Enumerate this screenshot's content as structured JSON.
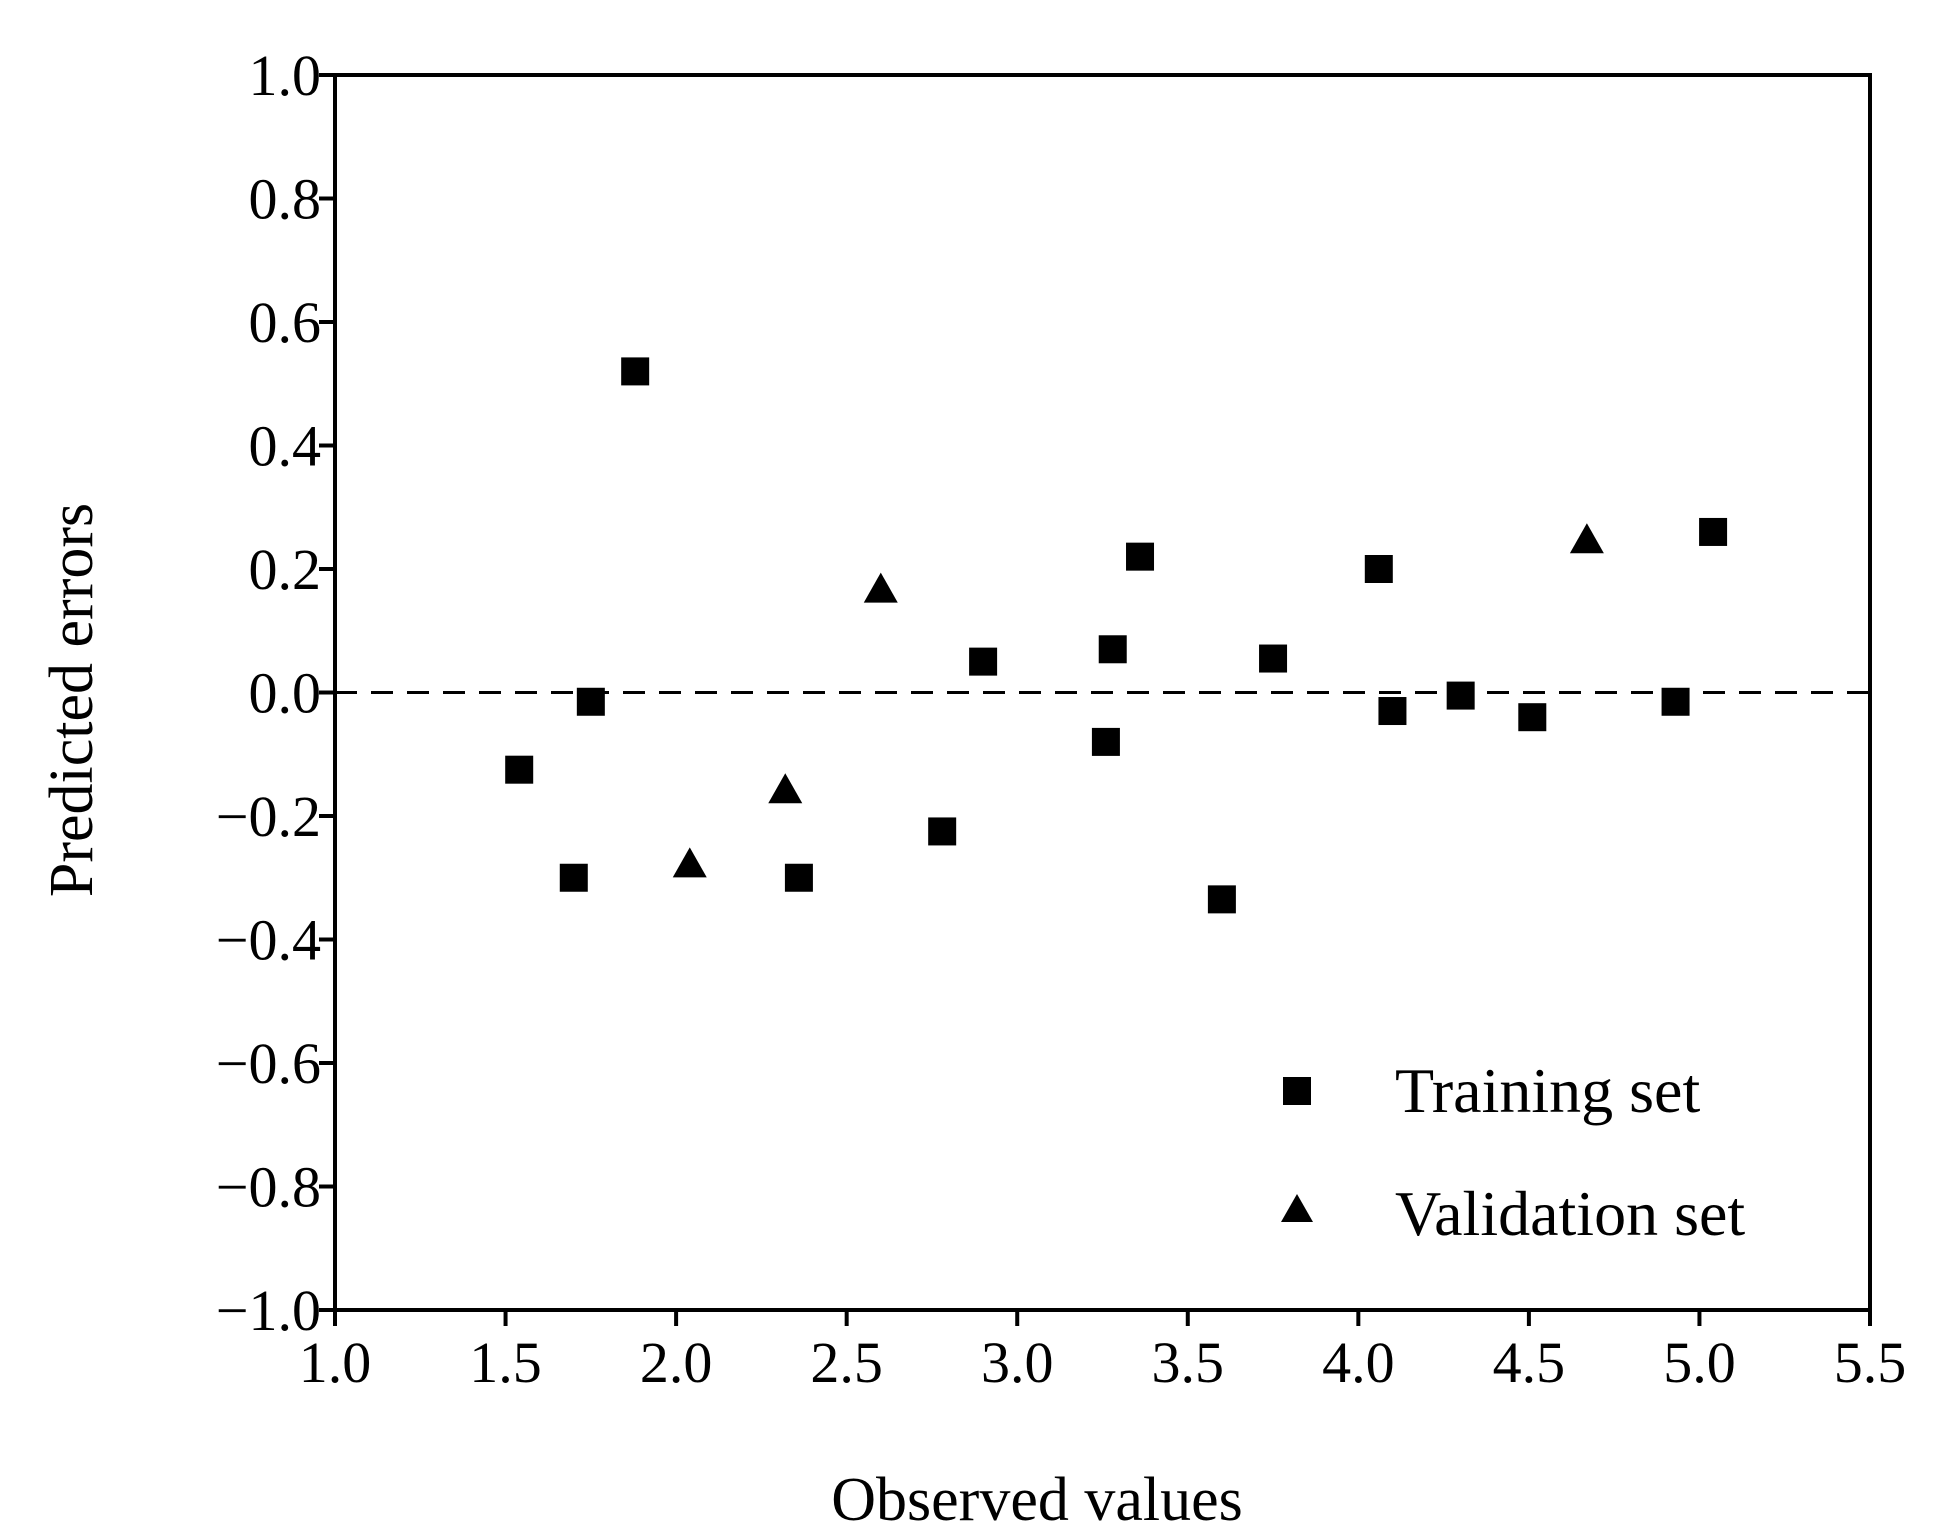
{
  "chart_data": {
    "type": "scatter",
    "title": "",
    "xlabel": "Observed values",
    "ylabel": "Predicted errors",
    "xlim": [
      1.0,
      5.5
    ],
    "ylim": [
      -1.0,
      1.0
    ],
    "x_ticks": [
      1.0,
      1.5,
      2.0,
      2.5,
      3.0,
      3.5,
      4.0,
      4.5,
      5.0,
      5.5
    ],
    "x_tick_labels": [
      "1.0",
      "1.5",
      "2.0",
      "2.5",
      "3.0",
      "3.5",
      "4.0",
      "4.5",
      "5.0",
      "5.5"
    ],
    "y_ticks": [
      1.0,
      0.8,
      0.6,
      0.4,
      0.2,
      0.0,
      -0.2,
      -0.4,
      -0.6,
      -0.8,
      -1.0
    ],
    "y_tick_labels": [
      "1.0",
      "0.8",
      "0.6",
      "0.4",
      "0.2",
      "0.0",
      "−0.2",
      "−0.4",
      "−0.6",
      "−0.8",
      "−1.0"
    ],
    "grid": false,
    "reference_line": {
      "y": 0.0,
      "style": "dashed"
    },
    "legend_position": "bottom-right",
    "series": [
      {
        "name": "Training set",
        "marker": "square",
        "color": "#000000",
        "points": [
          {
            "x": 1.54,
            "y": -0.125
          },
          {
            "x": 1.7,
            "y": -0.3
          },
          {
            "x": 1.75,
            "y": -0.015
          },
          {
            "x": 1.88,
            "y": 0.52
          },
          {
            "x": 2.36,
            "y": -0.3
          },
          {
            "x": 2.78,
            "y": -0.225
          },
          {
            "x": 2.9,
            "y": 0.05
          },
          {
            "x": 3.26,
            "y": -0.08
          },
          {
            "x": 3.28,
            "y": 0.07
          },
          {
            "x": 3.36,
            "y": 0.22
          },
          {
            "x": 3.6,
            "y": -0.335
          },
          {
            "x": 3.75,
            "y": 0.055
          },
          {
            "x": 4.06,
            "y": 0.2
          },
          {
            "x": 4.1,
            "y": -0.03
          },
          {
            "x": 4.3,
            "y": -0.005
          },
          {
            "x": 4.51,
            "y": -0.04
          },
          {
            "x": 4.93,
            "y": -0.015
          },
          {
            "x": 5.04,
            "y": 0.26
          }
        ]
      },
      {
        "name": "Validation set",
        "marker": "triangle",
        "color": "#000000",
        "points": [
          {
            "x": 2.04,
            "y": -0.28
          },
          {
            "x": 2.32,
            "y": -0.16
          },
          {
            "x": 2.6,
            "y": 0.165
          },
          {
            "x": 4.67,
            "y": 0.245
          }
        ]
      }
    ]
  }
}
